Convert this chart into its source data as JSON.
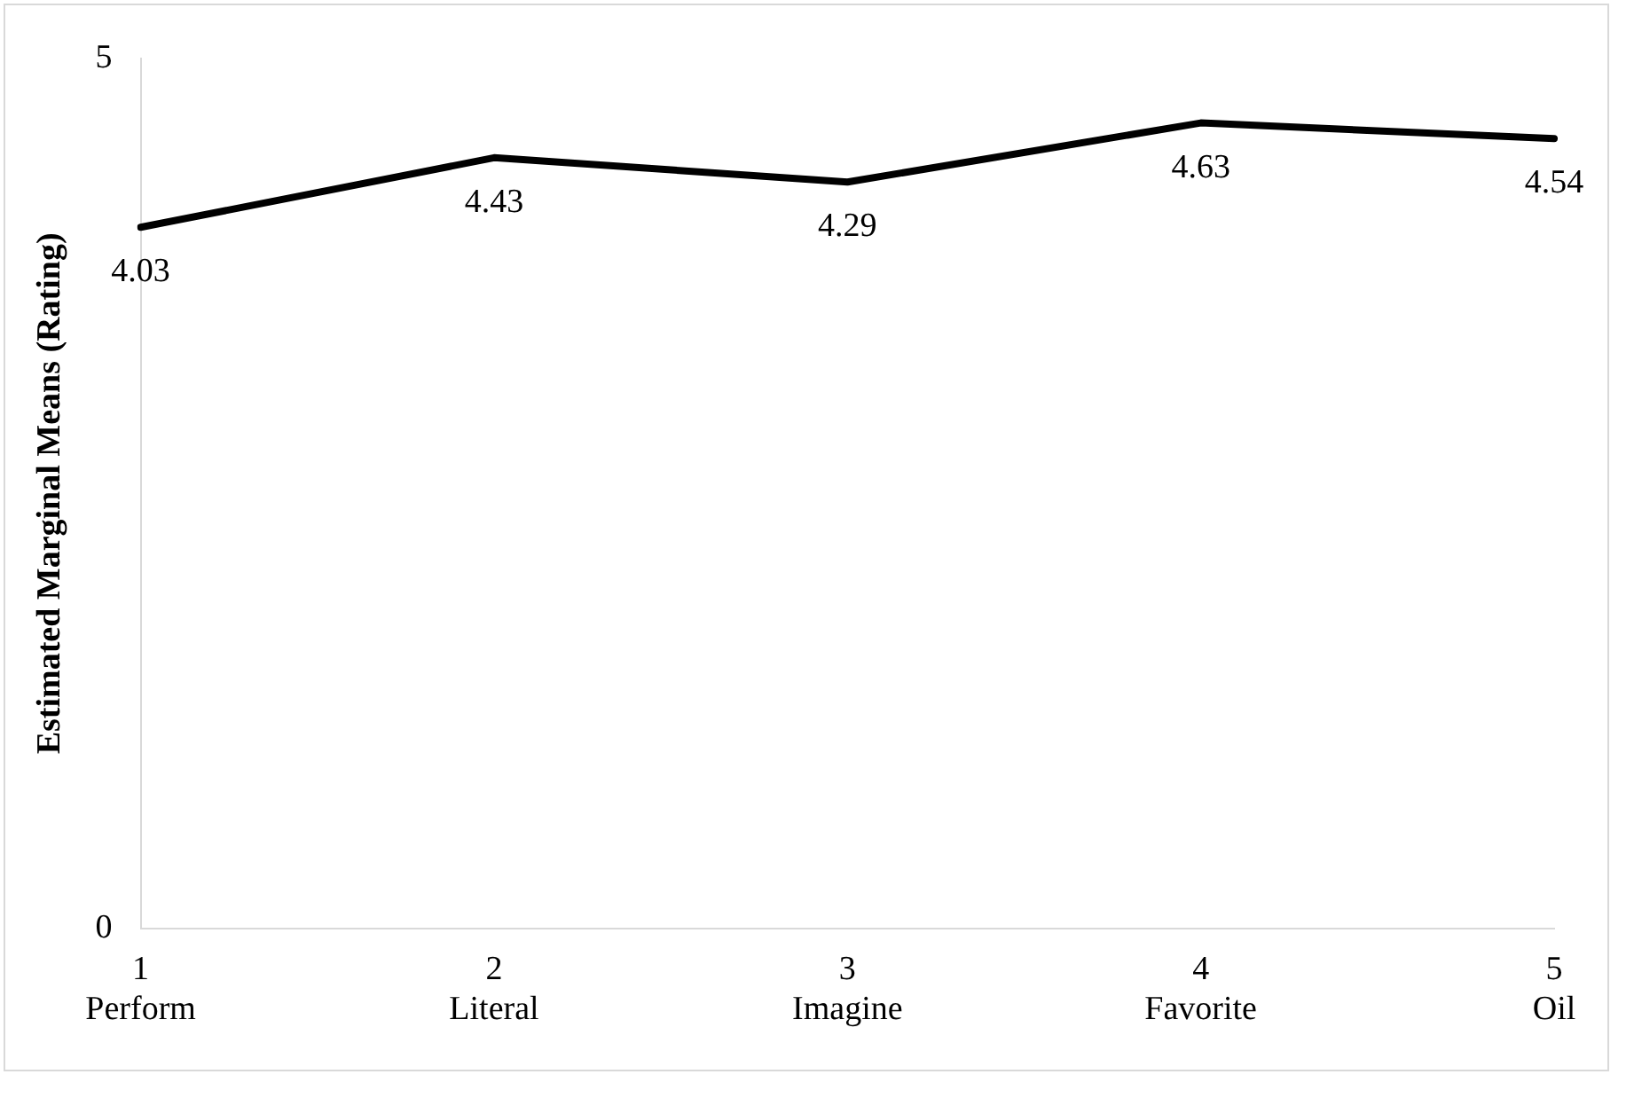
{
  "chart_data": {
    "type": "line",
    "ylabel": "Estimated Marginal Means (Rating)",
    "categories": [
      "1\nPerform",
      "2\nLiteral",
      "3\nImagine",
      "4\nFavorite",
      "5\nOil"
    ],
    "series": [
      {
        "color": "#000000",
        "values": [
          4.03,
          4.43,
          4.29,
          4.63,
          4.54
        ]
      }
    ],
    "ylim": [
      0,
      5
    ],
    "yticks": [
      0,
      5
    ],
    "grid": false,
    "legend": false,
    "marker": "none",
    "line_style": "solid",
    "data_labels": true
  }
}
